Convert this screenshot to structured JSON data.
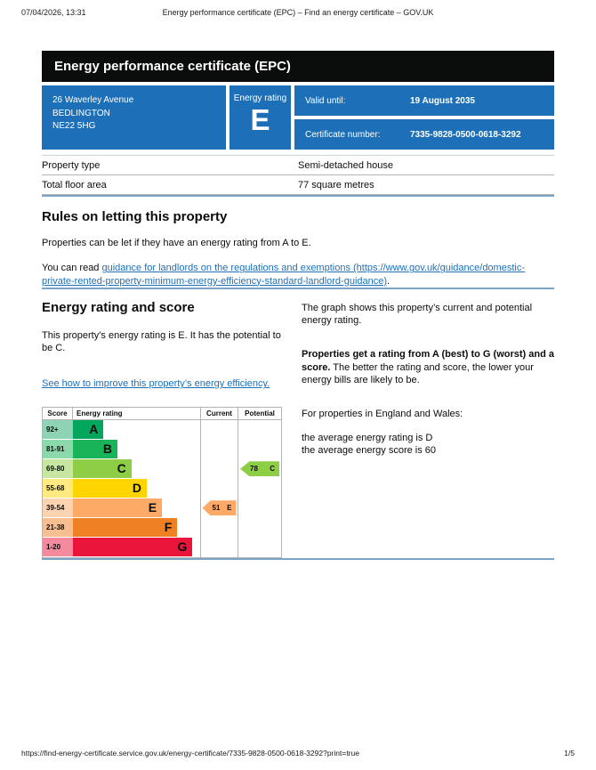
{
  "colors": {
    "govuk_blue": "#1d70b8",
    "banner_bg": "#0b0c0c",
    "divider_blue": "#7fa3c4",
    "table_border": "#b1b4b6"
  },
  "print_header": {
    "datetime": "07/04/2026, 13:31",
    "title": "Energy performance certificate (EPC) – Find an energy certificate – GOV.UK"
  },
  "banner": {
    "title": "Energy performance certificate (EPC)"
  },
  "summary_box": {
    "address_line1": "26 Waverley Avenue",
    "address_line2": "BEDLINGTON",
    "address_line3": "NE22 5HG",
    "rating_label": "Energy rating",
    "rating_value": "E",
    "valid_until_label": "Valid until:",
    "valid_until_value": "19 August 2035",
    "certificate_label": "Certificate number:",
    "certificate_value": "7335-9828-0500-0618-3292"
  },
  "property_table": {
    "rows": [
      {
        "label": "Property type",
        "value": "Semi-detached house"
      },
      {
        "label": "Total floor area",
        "value": "77 square metres"
      }
    ]
  },
  "rules_section": {
    "heading": "Rules on letting this property",
    "intro": "Properties can be let if they have an energy rating from A to E.",
    "link_prefix": "You can read ",
    "link_text": "guidance for landlords on the regulations and exemptions (https://www.gov.uk/guidance/domestic-private-rented-property-minimum-energy-efficiency-standard-landlord-guidance)",
    "link_suffix": "."
  },
  "rating_section": {
    "heading": "Energy rating and score",
    "summary": "This property’s energy rating is E. It has the potential to be C.",
    "improve_link": "See how to improve this property’s energy efficiency.",
    "graph_intro": "The graph shows this property’s current and potential energy rating.",
    "explain_bold": "Properties get a rating from A (best) to G (worst) and a score.",
    "explain_rest": " The better the rating and score, the lower your energy bills are likely to be.",
    "averages_intro": "For properties in England and Wales:",
    "average_rating": "the average energy rating is D",
    "average_score": "the average energy score is 60"
  },
  "chart_data": {
    "type": "bar",
    "title": "EPC energy rating and score graph",
    "headers": {
      "score": "Score",
      "rating": "Energy rating",
      "current": "Current",
      "potential": "Potential"
    },
    "bands": [
      {
        "score_range": "92+",
        "letter": "A",
        "color": "#00a65d",
        "tint": "#8ed3b3",
        "width_pct": 24
      },
      {
        "score_range": "81-91",
        "letter": "B",
        "color": "#19b459",
        "tint": "#8cd9ac",
        "width_pct": 35
      },
      {
        "score_range": "69-80",
        "letter": "C",
        "color": "#8dce46",
        "tint": "#c6e6a2",
        "width_pct": 46
      },
      {
        "score_range": "55-68",
        "letter": "D",
        "color": "#ffd500",
        "tint": "#ffea80",
        "width_pct": 58
      },
      {
        "score_range": "39-54",
        "letter": "E",
        "color": "#fcaa65",
        "tint": "#fdd4b2",
        "width_pct": 70
      },
      {
        "score_range": "21-38",
        "letter": "F",
        "color": "#ef8023",
        "tint": "#f7bf91",
        "width_pct": 82
      },
      {
        "score_range": "1-20",
        "letter": "G",
        "color": "#e9153b",
        "tint": "#f48a9d",
        "width_pct": 94
      }
    ],
    "current": {
      "score": "51",
      "letter": "E",
      "band_index": 4,
      "color": "#fcaa65"
    },
    "potential": {
      "score": "78",
      "letter": "C",
      "band_index": 2,
      "color": "#8dce46"
    }
  },
  "print_footer": {
    "url": "https://find-energy-certificate.service.gov.uk/energy-certificate/7335-9828-0500-0618-3292?print=true",
    "page": "1/5"
  }
}
